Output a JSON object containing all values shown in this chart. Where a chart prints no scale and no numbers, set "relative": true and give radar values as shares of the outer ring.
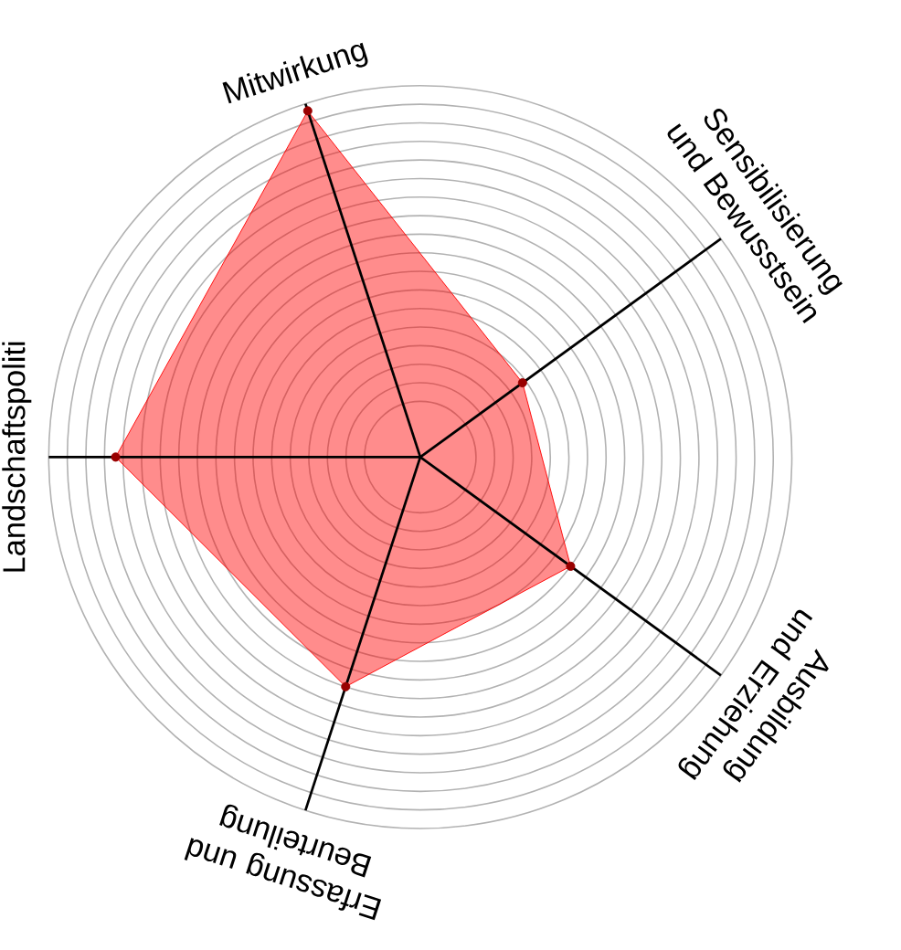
{
  "chart_data": {
    "type": "radar",
    "relative": true,
    "grid": true,
    "marker": "circle",
    "categories": [
      "Mitwirkung",
      "Sensibilisierung und Bewusstsein",
      "Ausbildung und Erziehung",
      "Erfassung und Beurteilung",
      "Landschaftspoliti"
    ],
    "series": [
      {
        "color": "#ff0000",
        "values": [
          0.98,
          0.34,
          0.5,
          0.65,
          0.82
        ]
      }
    ]
  }
}
